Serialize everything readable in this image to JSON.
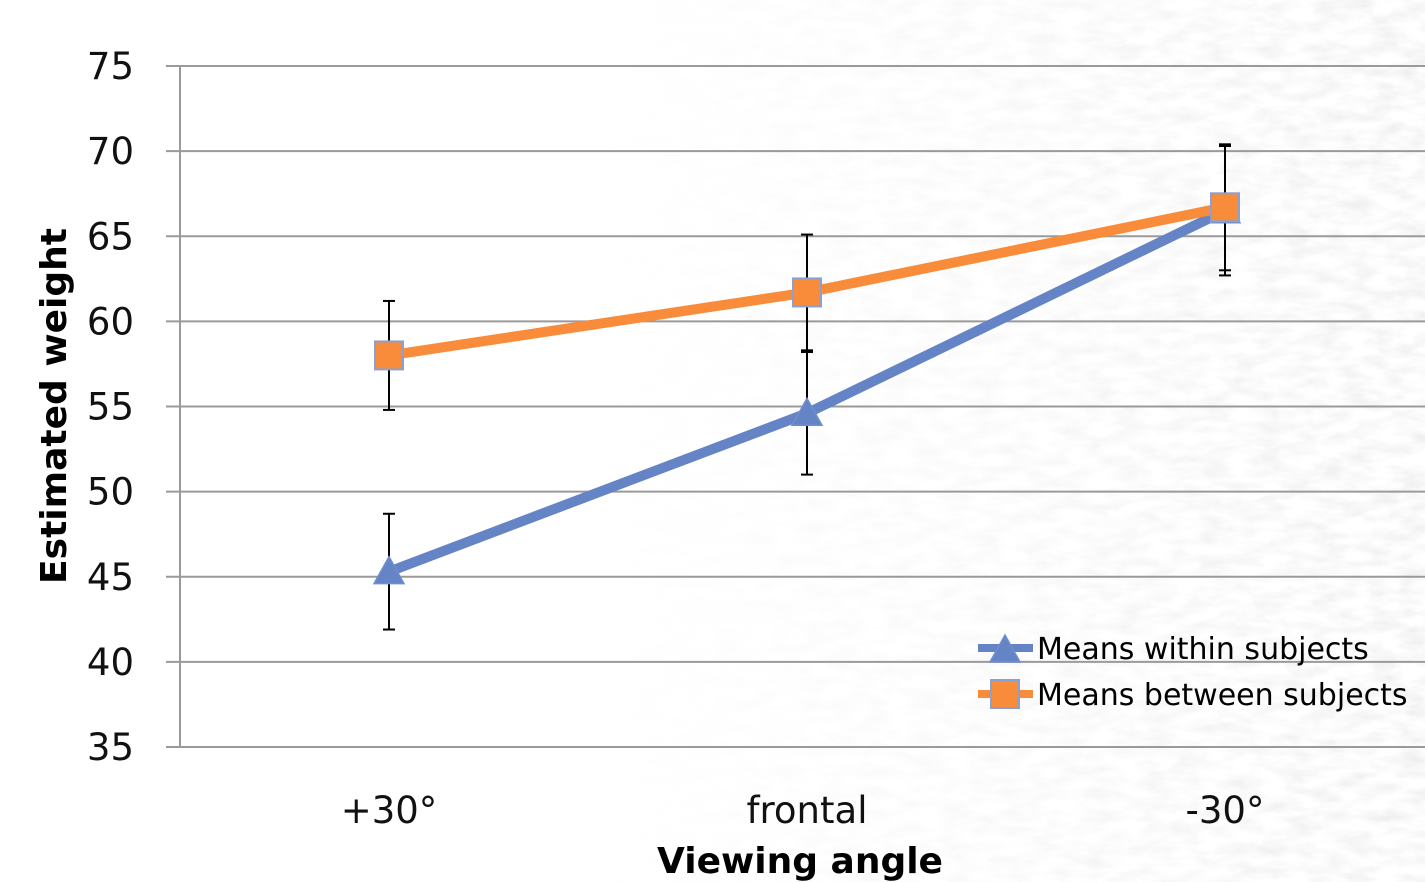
{
  "chart_data": {
    "type": "line",
    "title": "",
    "xlabel": "Viewing angle",
    "ylabel": "Estimated weight",
    "categories": [
      "+30°",
      "frontal",
      "-30°"
    ],
    "ylim": [
      35,
      75
    ],
    "yticks": [
      35,
      40,
      45,
      50,
      55,
      60,
      65,
      70,
      75
    ],
    "grid": "horizontal",
    "legend_position": "bottom-right",
    "series": [
      {
        "name": "Means within subjects",
        "color": "#6584C6",
        "marker": "triangle",
        "values": [
          45.3,
          54.6,
          66.5
        ],
        "error": [
          3.4,
          3.6,
          3.8
        ]
      },
      {
        "name": "Means between subjects",
        "color": "#F98C3A",
        "marker": "square",
        "values": [
          58.0,
          61.7,
          66.7
        ],
        "error": [
          3.2,
          3.4,
          3.7
        ]
      }
    ]
  }
}
